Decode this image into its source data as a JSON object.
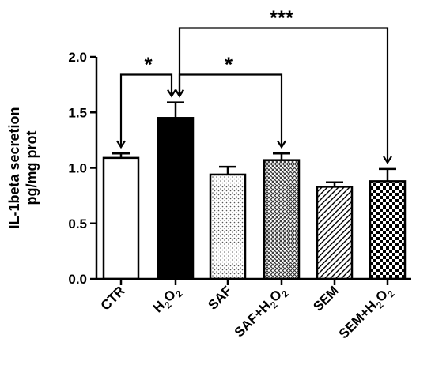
{
  "chart_data": {
    "type": "bar",
    "title": "",
    "xlabel": "",
    "ylabel": "IL-1beta secretion\npg/mg prot",
    "ylim": [
      0,
      2.0
    ],
    "yticks": [
      "0.0",
      "0.5",
      "1.0",
      "1.5",
      "2.0"
    ],
    "categories": [
      {
        "base": "CTR"
      },
      {
        "base": "H",
        "sub": "2",
        "mid": "O",
        "sub2": "2"
      },
      {
        "base": "SAF"
      },
      {
        "base": "SAF+H",
        "sub": "2",
        "mid": "O",
        "sub2": "2"
      },
      {
        "base": "SEM"
      },
      {
        "base": "SEM+H",
        "sub": "2",
        "mid": "O",
        "sub2": "2"
      }
    ],
    "values": [
      1.09,
      1.45,
      0.94,
      1.07,
      0.83,
      0.88
    ],
    "errors": [
      0.04,
      0.14,
      0.07,
      0.06,
      0.04,
      0.11
    ],
    "fills": [
      "white",
      "black",
      "dots",
      "crosshatch",
      "diagonal",
      "checker"
    ],
    "significance": [
      {
        "from": 0,
        "to": 1,
        "label": "*",
        "level": 1.84
      },
      {
        "from": 1,
        "to": 3,
        "label": "*",
        "level": 1.84
      },
      {
        "from": 1,
        "to": 5,
        "label": "***",
        "level": 2.26
      }
    ],
    "grid": false,
    "legend": "none"
  }
}
